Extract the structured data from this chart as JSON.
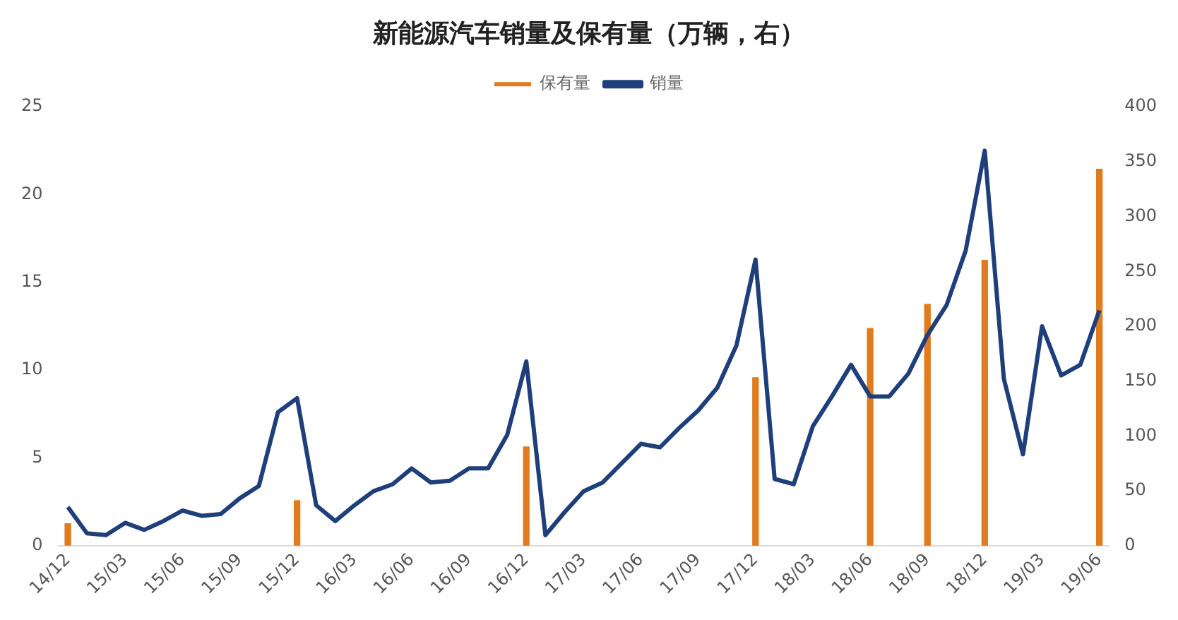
{
  "chart_data": {
    "type": "line",
    "title": "新能源汽车销量及保有量（万辆，右）",
    "categories": [
      "14/12",
      null,
      null,
      "15/03",
      null,
      null,
      "15/06",
      null,
      null,
      "15/09",
      null,
      null,
      "15/12",
      null,
      null,
      "16/03",
      null,
      null,
      "16/06",
      null,
      null,
      "16/09",
      null,
      null,
      "16/12",
      null,
      null,
      "17/03",
      null,
      null,
      "17/06",
      null,
      null,
      "17/09",
      null,
      null,
      "17/12",
      null,
      null,
      "18/03",
      null,
      null,
      "18/06",
      null,
      null,
      "18/09",
      null,
      null,
      "18/12",
      null,
      null,
      "19/03",
      null,
      null,
      "19/06"
    ],
    "series": [
      {
        "name": "保有量",
        "type": "bar",
        "axis": "y2",
        "color": "#e07b20",
        "values": [
          20,
          null,
          null,
          null,
          null,
          null,
          null,
          null,
          null,
          null,
          null,
          null,
          41,
          null,
          null,
          null,
          null,
          null,
          null,
          null,
          null,
          null,
          null,
          null,
          90,
          null,
          null,
          null,
          null,
          null,
          null,
          null,
          null,
          null,
          null,
          null,
          153,
          null,
          null,
          null,
          null,
          null,
          198,
          null,
          null,
          220,
          null,
          null,
          260,
          null,
          null,
          null,
          null,
          null,
          343
        ]
      },
      {
        "name": "销量",
        "color": "#1f3f7a",
        "values": [
          2.2,
          0.7,
          0.6,
          1.3,
          0.9,
          1.4,
          2.0,
          1.7,
          1.8,
          2.7,
          3.4,
          7.6,
          8.4,
          2.3,
          1.4,
          2.3,
          3.1,
          3.5,
          4.4,
          3.6,
          3.7,
          4.4,
          4.4,
          6.3,
          10.5,
          0.6,
          1.9,
          3.1,
          3.6,
          4.7,
          5.8,
          5.6,
          6.7,
          7.7,
          9.0,
          11.4,
          16.3,
          3.8,
          3.5,
          6.8,
          8.5,
          10.3,
          8.5,
          8.5,
          9.8,
          12.0,
          13.7,
          16.8,
          22.5,
          9.5,
          5.2,
          12.5,
          9.7,
          10.3,
          13.4
        ]
      }
    ],
    "ylim": [
      0,
      25
    ],
    "yticks": [
      0,
      5,
      10,
      15,
      20,
      25
    ],
    "y2lim": [
      0,
      400
    ],
    "y2ticks": [
      0,
      50,
      100,
      150,
      200,
      250,
      300,
      350,
      400
    ],
    "legend": "top",
    "grid": false,
    "marker": "none",
    "line_style": "solid"
  }
}
